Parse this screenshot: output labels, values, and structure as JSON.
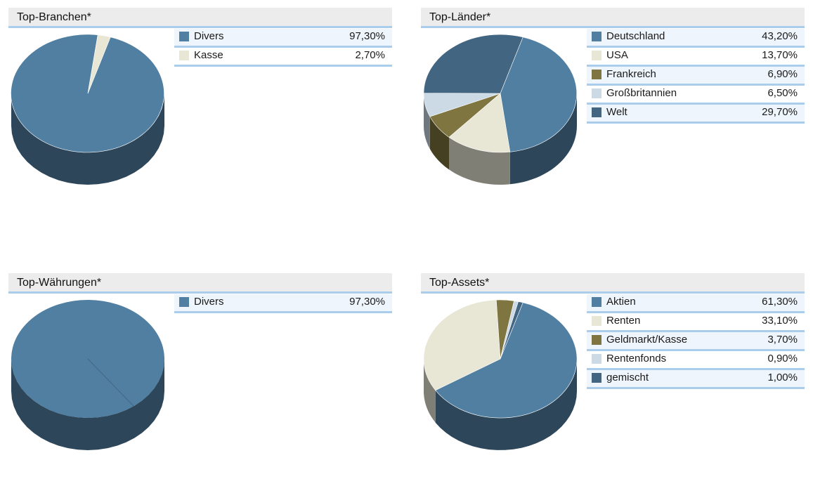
{
  "charts": [
    {
      "id": "branchen",
      "chart_data": {
        "type": "pie",
        "title": "Top-Branchen*",
        "categories": [
          "Divers",
          "Kasse"
        ],
        "values": [
          97.3,
          2.7
        ],
        "value_labels": [
          "97,30%",
          "2,70%"
        ],
        "colors": [
          "#517fa1",
          "#e8e6d4"
        ],
        "legend_position": "right"
      }
    },
    {
      "id": "laender",
      "chart_data": {
        "type": "pie",
        "title": "Top-Länder*",
        "categories": [
          "Deutschland",
          "USA",
          "Frankreich",
          "Großbritannien",
          "Welt"
        ],
        "values": [
          43.2,
          13.7,
          6.9,
          6.5,
          29.7
        ],
        "value_labels": [
          "43,20%",
          "13,70%",
          "6,90%",
          "6,50%",
          "29,70%"
        ],
        "colors": [
          "#517fa1",
          "#e8e6d4",
          "#7f7540",
          "#ccdae6",
          "#426582"
        ],
        "legend_position": "right"
      }
    },
    {
      "id": "waehrungen",
      "chart_data": {
        "type": "pie",
        "title": "Top-Währungen*",
        "categories": [
          "Divers"
        ],
        "values": [
          97.3
        ],
        "value_labels": [
          "97,30%"
        ],
        "colors": [
          "#517fa1"
        ],
        "legend_position": "right"
      }
    },
    {
      "id": "assets",
      "chart_data": {
        "type": "pie",
        "title": "Top-Assets*",
        "categories": [
          "Aktien",
          "Renten",
          "Geldmarkt/Kasse",
          "Rentenfonds",
          "gemischt"
        ],
        "values": [
          61.3,
          33.1,
          3.7,
          0.9,
          1.0
        ],
        "value_labels": [
          "61,30%",
          "33,10%",
          "3,70%",
          "0,90%",
          "1,00%"
        ],
        "colors": [
          "#517fa1",
          "#e8e6d4",
          "#7f7540",
          "#ccdae6",
          "#426582"
        ],
        "legend_position": "right"
      }
    }
  ]
}
